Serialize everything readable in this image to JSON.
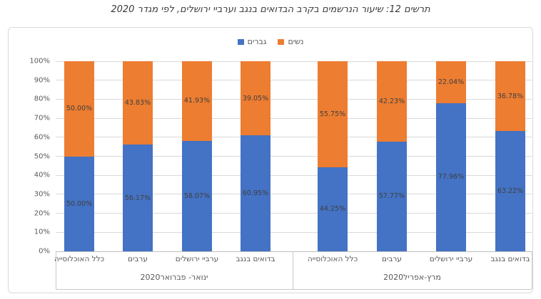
{
  "title": "תרשים 12: שיעור הנרשמים בקרב הבדואים בנגב וערביי ירושלים, לפי מגדר 2020",
  "legend": {
    "items": [
      {
        "label": "גברים",
        "color": "#4472C4"
      },
      {
        "label": "נשים",
        "color": "#ED7D31"
      }
    ]
  },
  "chart_data": {
    "type": "bar",
    "stacked": true,
    "stacked_to": 100,
    "direction": "rtl",
    "title": "תרשים 12: שיעור הנרשמים בקרב הבדואים בנגב וערביי ירושלים, לפי מגדר 2020",
    "groups": [
      {
        "label": "ינואר- פברואר2020",
        "categories": [
          "כלל האוכלוסייה",
          "ערבים",
          "ערביי ירושלים",
          "בדואים בנגב"
        ]
      },
      {
        "label": "מרץ-אפריל2020",
        "categories": [
          "כלל האוכלוסייה",
          "ערבים",
          "ערביי ירושלים",
          "בדואים בנגב"
        ]
      }
    ],
    "series": [
      {
        "name": "גברים",
        "color": "#4472C4",
        "values": [
          50.0,
          56.17,
          58.07,
          60.95,
          44.25,
          57.77,
          77.96,
          63.22
        ]
      },
      {
        "name": "נשים",
        "color": "#ED7D31",
        "values": [
          50.0,
          43.83,
          41.93,
          39.05,
          55.75,
          42.23,
          22.04,
          36.78
        ]
      }
    ],
    "ylim": [
      0,
      100
    ],
    "y_ticks": [
      "0%",
      "10%",
      "20%",
      "30%",
      "40%",
      "50%",
      "60%",
      "70%",
      "80%",
      "90%",
      "100%"
    ],
    "grid": true,
    "legend_position": "top",
    "data_label_format": "0.00%"
  },
  "colors": {
    "men_blue": "#4472C4",
    "women_orange": "#ED7D31",
    "gridline": "#D9D9D9",
    "axis_line": "#C9C9C9",
    "axis_text": "#595959",
    "value_label_text": "#404040",
    "chart_border": "#D9D9D9"
  }
}
